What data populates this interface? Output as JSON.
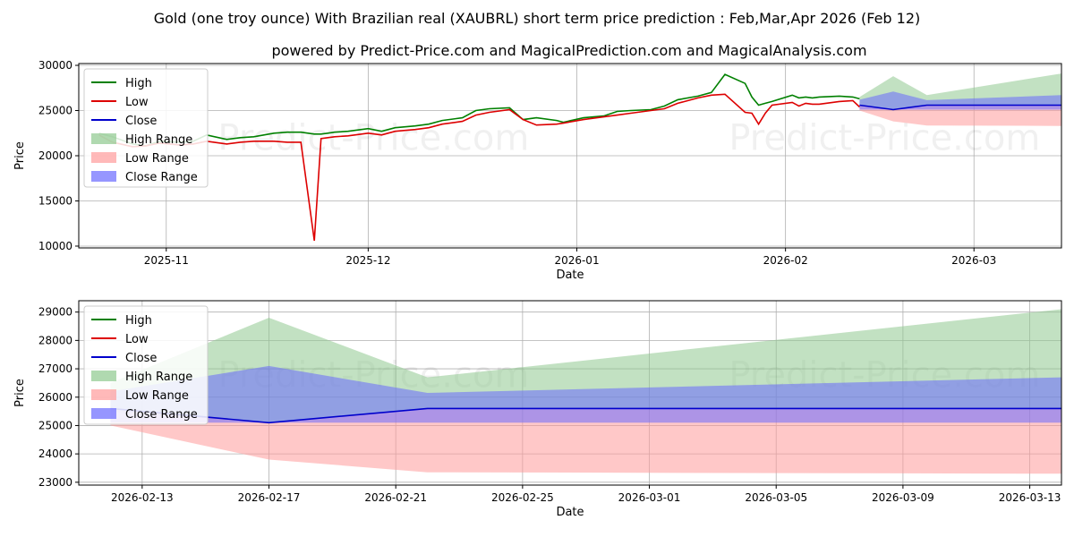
{
  "title": "Gold (one troy ounce) With Brazilian real (XAUBRL) short term price prediction : Feb,Mar,Apr 2026 (Feb 12)",
  "subtitle": "powered by Predict-Price.com and MagicalPrediction.com and MagicalAnalysis.com",
  "watermark": "Predict-Price.com",
  "colors": {
    "high": "#008000",
    "low": "#dd0000",
    "close": "#0000cc",
    "high_range": "#8fc98f",
    "low_range": "#ff9b9b",
    "close_range": "#6a6aff"
  },
  "chart_data": [
    {
      "type": "line",
      "name": "history-and-forecast",
      "xlabel": "Date",
      "ylabel": "Price",
      "x_start": "2025-10-19",
      "x_end": "2026-03-14",
      "ylim": [
        9800,
        30200
      ],
      "yticks": [
        10000,
        15000,
        20000,
        25000,
        30000
      ],
      "xticks": [
        {
          "date": "2025-11-01",
          "label": "2025-11"
        },
        {
          "date": "2025-12-01",
          "label": "2025-12"
        },
        {
          "date": "2026-01-01",
          "label": "2026-01"
        },
        {
          "date": "2026-02-01",
          "label": "2026-02"
        },
        {
          "date": "2026-03-01",
          "label": "2026-03"
        }
      ],
      "grid": true,
      "legend": [
        "High",
        "Low",
        "Close",
        "High Range",
        "Low Range",
        "Close Range"
      ],
      "legend_position": "top-left",
      "history": {
        "dates": [
          "2025-10-22",
          "2025-10-24",
          "2025-10-27",
          "2025-10-29",
          "2025-10-31",
          "2025-11-03",
          "2025-11-05",
          "2025-11-07",
          "2025-11-10",
          "2025-11-12",
          "2025-11-14",
          "2025-11-17",
          "2025-11-19",
          "2025-11-21",
          "2025-11-23",
          "2025-11-24",
          "2025-11-25",
          "2025-11-26",
          "2025-11-28",
          "2025-12-01",
          "2025-12-03",
          "2025-12-05",
          "2025-12-08",
          "2025-12-10",
          "2025-12-12",
          "2025-12-15",
          "2025-12-17",
          "2025-12-19",
          "2025-12-22",
          "2025-12-24",
          "2025-12-26",
          "2025-12-29",
          "2025-12-30",
          "2026-01-02",
          "2026-01-05",
          "2026-01-07",
          "2026-01-09",
          "2026-01-12",
          "2026-01-14",
          "2026-01-16",
          "2026-01-19",
          "2026-01-21",
          "2026-01-23",
          "2026-01-26",
          "2026-01-27",
          "2026-01-28",
          "2026-01-29",
          "2026-01-30",
          "2026-02-02",
          "2026-02-03",
          "2026-02-04",
          "2026-02-05",
          "2026-02-06",
          "2026-02-09",
          "2026-02-11",
          "2026-02-12"
        ],
        "high": [
          22500,
          22100,
          21300,
          21100,
          21600,
          21500,
          21600,
          22300,
          21800,
          22000,
          22100,
          22500,
          22600,
          22600,
          22400,
          22400,
          22500,
          22600,
          22700,
          23000,
          22700,
          23100,
          23300,
          23500,
          23900,
          24200,
          25000,
          25200,
          25300,
          24000,
          24200,
          23900,
          23700,
          24200,
          24400,
          24900,
          25000,
          25100,
          25500,
          26200,
          26600,
          27000,
          29000,
          28000,
          26500,
          25600,
          25800,
          26000,
          26700,
          26400,
          26500,
          26400,
          26500,
          26600,
          26500,
          26300
        ],
        "low": [
          22300,
          21500,
          21000,
          21100,
          21400,
          21200,
          21300,
          21600,
          21300,
          21500,
          21600,
          21600,
          21500,
          21500,
          10600,
          21900,
          22000,
          22100,
          22200,
          22500,
          22300,
          22700,
          22900,
          23100,
          23500,
          23800,
          24500,
          24800,
          25100,
          24000,
          23400,
          23500,
          23600,
          24000,
          24300,
          24500,
          24700,
          25000,
          25200,
          25800,
          26400,
          26700,
          26800,
          24800,
          24700,
          23500,
          24700,
          25600,
          25900,
          25500,
          25800,
          25700,
          25700,
          26000,
          26100,
          25400
        ]
      }
    },
    {
      "type": "area",
      "name": "forecast-zoom",
      "xlabel": "Date",
      "ylabel": "Price",
      "x_start": "2026-02-11",
      "x_end": "2026-03-14",
      "ylim": [
        22900,
        29400
      ],
      "yticks": [
        23000,
        24000,
        25000,
        26000,
        27000,
        28000,
        29000
      ],
      "xticks": [
        {
          "date": "2026-02-13",
          "label": "2026-02-13"
        },
        {
          "date": "2026-02-17",
          "label": "2026-02-17"
        },
        {
          "date": "2026-02-21",
          "label": "2026-02-21"
        },
        {
          "date": "2026-02-25",
          "label": "2026-02-25"
        },
        {
          "date": "2026-03-01",
          "label": "2026-03-01"
        },
        {
          "date": "2026-03-05",
          "label": "2026-03-05"
        },
        {
          "date": "2026-03-09",
          "label": "2026-03-09"
        },
        {
          "date": "2026-03-13",
          "label": "2026-03-13"
        }
      ],
      "grid": true,
      "legend": [
        "High",
        "Low",
        "Close",
        "High Range",
        "Low Range",
        "Close Range"
      ],
      "legend_position": "top-left",
      "forecast": {
        "dates": [
          "2026-02-12",
          "2026-02-17",
          "2026-02-22",
          "2026-03-14"
        ],
        "high_range": [
          [
            25500,
            26500
          ],
          [
            25100,
            28800
          ],
          [
            25600,
            26700
          ],
          [
            25600,
            29100
          ]
        ],
        "low_range": [
          [
            25000,
            25600
          ],
          [
            23800,
            25100
          ],
          [
            23350,
            25600
          ],
          [
            23300,
            25600
          ]
        ],
        "close_range": [
          [
            25100,
            26200
          ],
          [
            25100,
            27100
          ],
          [
            25100,
            26150
          ],
          [
            25100,
            26700
          ]
        ],
        "close": [
          25600,
          25100,
          25600,
          25600
        ]
      }
    }
  ]
}
